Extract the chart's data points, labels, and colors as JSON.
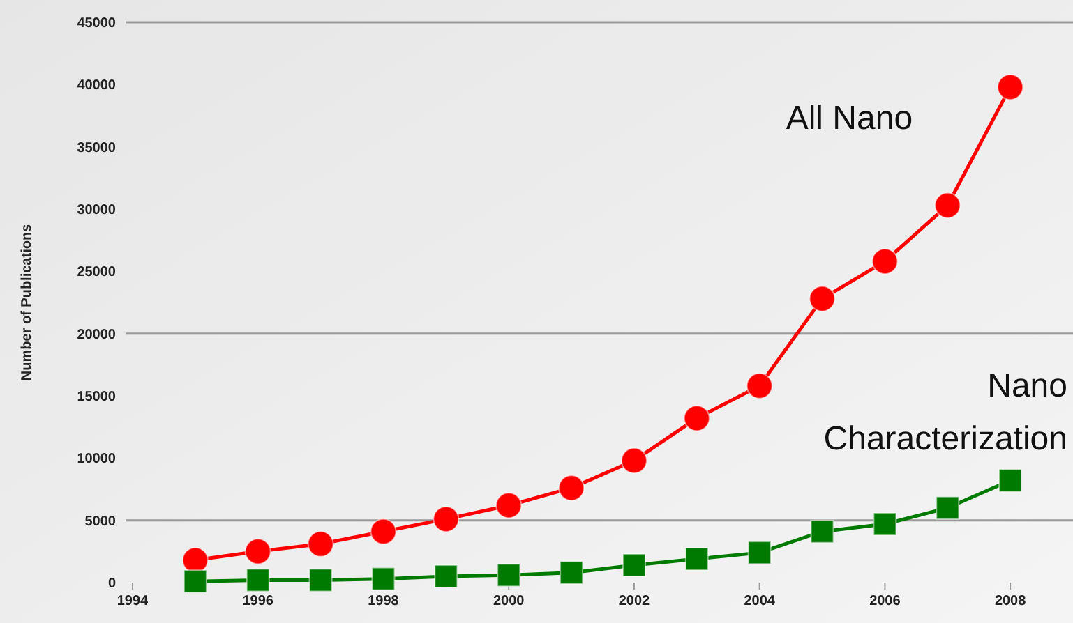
{
  "chart_data": {
    "type": "line",
    "ylabel": "Number of Publications",
    "x": [
      1995,
      1996,
      1997,
      1998,
      1999,
      2000,
      2001,
      2002,
      2003,
      2004,
      2005,
      2006,
      2007,
      2008
    ],
    "series": [
      {
        "name": "All Nano",
        "color": "#ff0000",
        "marker": "circle",
        "values": [
          1800,
          2500,
          3100,
          4100,
          5100,
          6200,
          7600,
          9800,
          13200,
          15800,
          22800,
          25800,
          30300,
          39800
        ]
      },
      {
        "name": "Nano Characterization",
        "color": "#007a00",
        "marker": "square",
        "values": [
          100,
          200,
          200,
          300,
          500,
          600,
          800,
          1400,
          1900,
          2400,
          4100,
          4700,
          6000,
          8200
        ]
      }
    ],
    "xlim": [
      1994,
      2009
    ],
    "xticks": [
      1994,
      1996,
      1998,
      2000,
      2002,
      2004,
      2006,
      2008
    ],
    "ylim": [
      0,
      45000
    ],
    "yticks": [
      0,
      5000,
      10000,
      15000,
      20000,
      25000,
      30000,
      35000,
      40000,
      45000
    ],
    "ref_lines": [
      {
        "axis": "y",
        "value": 5000
      },
      {
        "axis": "y",
        "value": 20000
      }
    ],
    "grid": false
  }
}
